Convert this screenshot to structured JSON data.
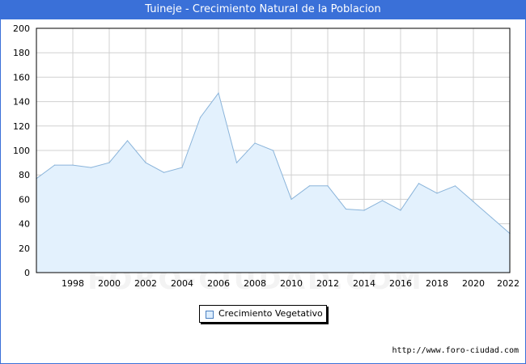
{
  "title": "Tuineje - Crecimiento Natural de la Poblacion",
  "source": "http://www.foro-ciudad.com",
  "watermark": "FORO-CIUDAD.COM",
  "colors": {
    "header_bg": "#3a70d8",
    "area_fill": "#e3f1fd",
    "line": "#8ab4da",
    "grid": "#d0d0d0"
  },
  "chart_data": {
    "type": "area",
    "x": [
      1996,
      1997,
      1998,
      1999,
      2000,
      2001,
      2002,
      2003,
      2004,
      2005,
      2006,
      2007,
      2008,
      2009,
      2010,
      2011,
      2012,
      2013,
      2014,
      2015,
      2016,
      2017,
      2018,
      2019,
      2020,
      2021,
      2022
    ],
    "series": [
      {
        "name": "Crecimiento Vegetativo",
        "values": [
          77,
          88,
          88,
          86,
          90,
          108,
          90,
          82,
          86,
          127,
          147,
          90,
          106,
          100,
          60,
          71,
          71,
          52,
          51,
          59,
          51,
          73,
          65,
          71,
          58,
          45,
          32
        ]
      }
    ],
    "x_ticks": [
      1998,
      2000,
      2002,
      2004,
      2006,
      2008,
      2010,
      2012,
      2014,
      2016,
      2018,
      2020,
      2022
    ],
    "y_ticks": [
      0,
      20,
      40,
      60,
      80,
      100,
      120,
      140,
      160,
      180,
      200
    ],
    "xlim": [
      1996,
      2022
    ],
    "ylim": [
      0,
      200
    ],
    "grid": true,
    "legend": "bottom-center",
    "xlabel": "",
    "ylabel": ""
  }
}
